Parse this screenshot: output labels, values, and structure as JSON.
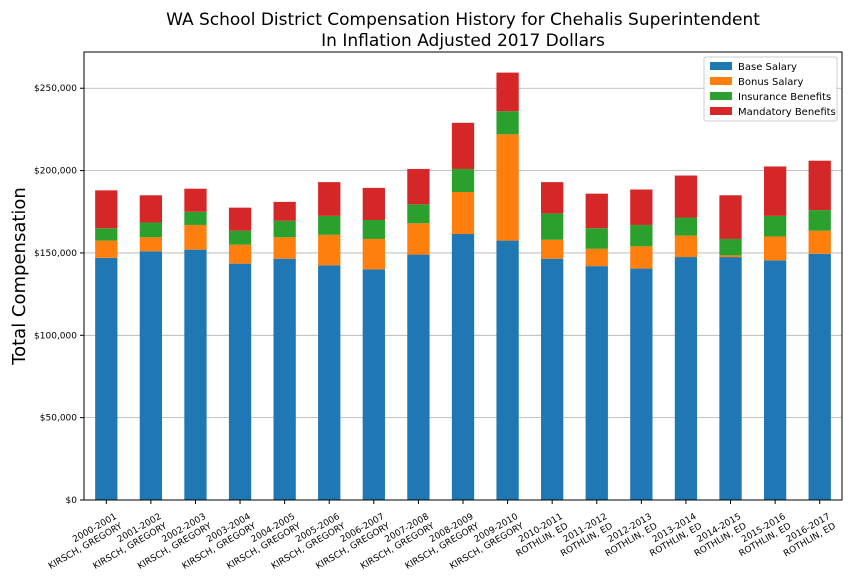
{
  "chart_data": {
    "type": "bar",
    "stacked": true,
    "title": "WA School District Compensation History for Chehalis Superintendent",
    "subtitle": "In Inflation Adjusted 2017 Dollars",
    "xlabel": "",
    "ylabel": "Total Compensation",
    "ylim": [
      0,
      272000
    ],
    "yticks": [
      0,
      50000,
      100000,
      150000,
      200000,
      250000
    ],
    "ytick_labels": [
      "$0",
      "$50,000",
      "$100,000",
      "$150,000",
      "$200,000",
      "$250,000"
    ],
    "grid": "horizontal",
    "legend_position": "top-right",
    "categories": [
      [
        "2000-2001",
        "KIRSCH, GREGORY"
      ],
      [
        "2001-2002",
        "KIRSCH, GREGORY"
      ],
      [
        "2002-2003",
        "KIRSCH, GREGORY"
      ],
      [
        "2003-2004",
        "KIRSCH, GREGORY"
      ],
      [
        "2004-2005",
        "KIRSCH, GREGORY"
      ],
      [
        "2005-2006",
        "KIRSCH, GREGORY"
      ],
      [
        "2006-2007",
        "KIRSCH, GREGORY"
      ],
      [
        "2007-2008",
        "KIRSCH, GREGORY"
      ],
      [
        "2008-2009",
        "KIRSCH, GREGORY"
      ],
      [
        "2009-2010",
        "KIRSCH, GREGORY"
      ],
      [
        "2010-2011",
        "ROTHLIN, ED"
      ],
      [
        "2011-2012",
        "ROTHLIN, ED"
      ],
      [
        "2012-2013",
        "ROTHLIN, ED"
      ],
      [
        "2013-2014",
        "ROTHLIN, ED"
      ],
      [
        "2014-2015",
        "ROTHLIN, ED"
      ],
      [
        "2015-2016",
        "ROTHLIN, ED"
      ],
      [
        "2016-2017",
        "ROTHLIN, ED"
      ]
    ],
    "series": [
      {
        "name": "Base Salary",
        "color": "#1f77b4",
        "values": [
          147000,
          151000,
          152000,
          143500,
          146500,
          142500,
          140000,
          149000,
          161500,
          157500,
          146500,
          142000,
          140500,
          147500,
          147500,
          145500,
          149500
        ]
      },
      {
        "name": "Bonus Salary",
        "color": "#ff7f0e",
        "values": [
          10500,
          8500,
          15000,
          11500,
          13000,
          18500,
          18500,
          19000,
          25500,
          64500,
          11500,
          10500,
          13500,
          13000,
          1000,
          14500,
          14000
        ]
      },
      {
        "name": "Insurance Benefits",
        "color": "#2ca02c",
        "values": [
          7500,
          9000,
          8000,
          8500,
          10000,
          11500,
          11500,
          11500,
          14000,
          14000,
          16000,
          12500,
          13000,
          11000,
          10000,
          12500,
          12500
        ]
      },
      {
        "name": "Mandatory Benefits",
        "color": "#d62728",
        "values": [
          23000,
          16500,
          14000,
          14000,
          11500,
          20500,
          19500,
          21500,
          28000,
          23500,
          19000,
          21000,
          21500,
          25500,
          26500,
          30000,
          30000
        ]
      }
    ]
  }
}
